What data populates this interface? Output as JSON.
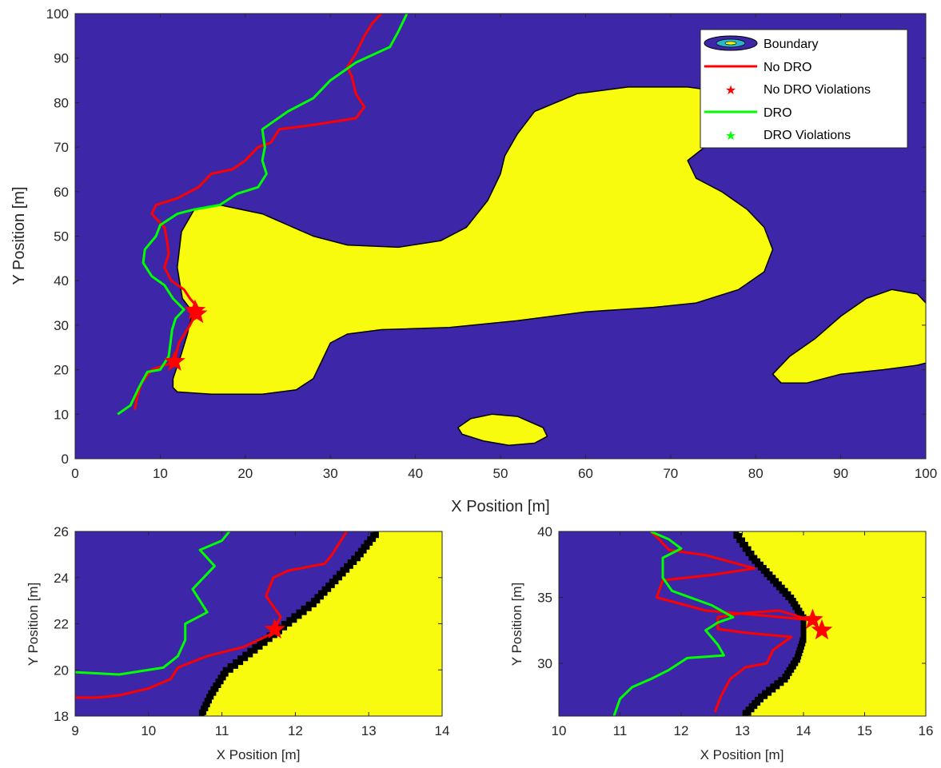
{
  "colors": {
    "safe_region": "#3E26A8",
    "unsafe_region": "#F9FB0E",
    "no_dro": "#FF0000",
    "dro": "#00FF00",
    "boundary_line": "#000000"
  },
  "chart_data": [
    {
      "type": "line",
      "panel": "main",
      "xlabel": "X Position [m]",
      "ylabel": "Y Position [m]",
      "xlim": [
        0,
        100
      ],
      "ylim": [
        0,
        100
      ],
      "xticks": [
        "0",
        "10",
        "20",
        "30",
        "40",
        "50",
        "60",
        "70",
        "80",
        "90",
        "100"
      ],
      "yticks": [
        "0",
        "10",
        "20",
        "30",
        "40",
        "50",
        "60",
        "70",
        "80",
        "90",
        "100"
      ],
      "background": "filled contour: yellow obstacle regions on blue free space, black boundary contour",
      "legend_position": "top-right",
      "legend": [
        "Boundary",
        "No DRO",
        "No DRO Violations",
        "DRO",
        "DRO Violations"
      ],
      "obstacles": [
        {
          "name": "large-obstacle",
          "outline": [
            [
              11.5,
              16
            ],
            [
              12,
              15
            ],
            [
              16,
              14.5
            ],
            [
              22,
              14.5
            ],
            [
              26,
              15.5
            ],
            [
              28,
              18
            ],
            [
              29,
              22
            ],
            [
              30,
              26
            ],
            [
              32,
              28
            ],
            [
              36,
              29
            ],
            [
              44,
              29.5
            ],
            [
              52,
              31
            ],
            [
              60,
              33
            ],
            [
              68,
              34
            ],
            [
              73,
              35
            ],
            [
              78,
              38
            ],
            [
              81,
              42
            ],
            [
              82,
              47
            ],
            [
              81,
              52
            ],
            [
              79,
              56
            ],
            [
              76,
              60
            ],
            [
              73,
              63
            ],
            [
              72,
              67
            ],
            [
              74,
              70
            ],
            [
              77,
              72
            ],
            [
              83,
              74
            ],
            [
              84,
              77
            ],
            [
              82,
              80
            ],
            [
              78,
              82
            ],
            [
              72,
              83.5
            ],
            [
              65,
              83.5
            ],
            [
              59,
              82
            ],
            [
              54,
              78
            ],
            [
              52,
              73
            ],
            [
              50.5,
              68
            ],
            [
              50,
              64
            ],
            [
              48.5,
              58
            ],
            [
              46,
              52
            ],
            [
              43,
              49
            ],
            [
              38,
              47.5
            ],
            [
              32,
              48
            ],
            [
              28,
              50
            ],
            [
              22,
              55
            ],
            [
              17,
              57
            ],
            [
              14,
              56
            ],
            [
              12.5,
              51
            ],
            [
              12,
              43
            ],
            [
              12.6,
              36
            ],
            [
              13.8,
              33
            ],
            [
              13.2,
              28
            ],
            [
              12.4,
              23
            ],
            [
              11.5,
              18
            ]
          ]
        },
        {
          "name": "right-obstacle",
          "outline": [
            [
              82,
              19
            ],
            [
              84,
              23
            ],
            [
              87,
              27
            ],
            [
              90,
              32
            ],
            [
              93,
              36
            ],
            [
              96,
              38
            ],
            [
              99,
              37
            ],
            [
              101,
              33
            ],
            [
              101,
              22
            ],
            [
              99,
              21
            ],
            [
              95,
              20
            ],
            [
              90,
              19
            ],
            [
              86,
              17
            ],
            [
              83,
              17
            ]
          ]
        },
        {
          "name": "small-obstacle",
          "outline": [
            [
              45,
              7
            ],
            [
              46.5,
              9
            ],
            [
              49,
              10
            ],
            [
              52,
              9.5
            ],
            [
              55,
              7
            ],
            [
              55.5,
              5
            ],
            [
              54,
              3.5
            ],
            [
              51,
              3
            ],
            [
              48,
              4
            ],
            [
              45.5,
              5.5
            ]
          ]
        }
      ],
      "series": [
        {
          "name": "No DRO",
          "color": "#FF0000",
          "points": [
            [
              7,
              11
            ],
            [
              7.3,
              14
            ],
            [
              7.8,
              17
            ],
            [
              9,
              20
            ],
            [
              11.3,
              21.5
            ],
            [
              11.8,
              23
            ],
            [
              12.2,
              26
            ],
            [
              13.5,
              30
            ],
            [
              14.3,
              33
            ],
            [
              14.4,
              34
            ],
            [
              13.5,
              36
            ],
            [
              12.8,
              38
            ],
            [
              11.3,
              40
            ],
            [
              10.5,
              43
            ],
            [
              11,
              46
            ],
            [
              10.8,
              49
            ],
            [
              10.5,
              52
            ],
            [
              9,
              55
            ],
            [
              9.5,
              57
            ],
            [
              12,
              58.5
            ],
            [
              14.5,
              61
            ],
            [
              16,
              64
            ],
            [
              18.5,
              65
            ],
            [
              20,
              67
            ],
            [
              21.5,
              70
            ],
            [
              23,
              71
            ],
            [
              24,
              74
            ],
            [
              28,
              75
            ],
            [
              33,
              76.5
            ],
            [
              34,
              79
            ],
            [
              33,
              82
            ],
            [
              32.5,
              86
            ],
            [
              32,
              88
            ],
            [
              33,
              91
            ],
            [
              34,
              95
            ],
            [
              35,
              98
            ],
            [
              36,
              100
            ]
          ]
        },
        {
          "name": "DRO",
          "color": "#00FF00",
          "points": [
            [
              5,
              10
            ],
            [
              6.5,
              12
            ],
            [
              7.5,
              16
            ],
            [
              8.5,
              19.5
            ],
            [
              10,
              20
            ],
            [
              11,
              23
            ],
            [
              11.2,
              26
            ],
            [
              11.4,
              29
            ],
            [
              11.8,
              31.5
            ],
            [
              12.8,
              33.5
            ],
            [
              11.5,
              36
            ],
            [
              10.5,
              39
            ],
            [
              9,
              41
            ],
            [
              8,
              44
            ],
            [
              8.2,
              47
            ],
            [
              9.5,
              50
            ],
            [
              10,
              52.5
            ],
            [
              12,
              55
            ],
            [
              14,
              56
            ],
            [
              17,
              57
            ],
            [
              19,
              59.5
            ],
            [
              21.5,
              61
            ],
            [
              22.5,
              64
            ],
            [
              22,
              67
            ],
            [
              22.3,
              70
            ],
            [
              22,
              74
            ],
            [
              25,
              78
            ],
            [
              28,
              81
            ],
            [
              30,
              85
            ],
            [
              33,
              89
            ],
            [
              37,
              92.5
            ],
            [
              38,
              96
            ],
            [
              39,
              100
            ]
          ]
        }
      ],
      "violations": {
        "no_dro": [
          [
            11.7,
            21.8
          ],
          [
            14.1,
            33.3
          ],
          [
            14.3,
            32.5
          ]
        ],
        "dro": []
      }
    },
    {
      "type": "line",
      "panel": "zoom-left",
      "xlabel": "X Position [m]",
      "ylabel": "Y Position [m]",
      "xlim": [
        9,
        14
      ],
      "ylim": [
        18,
        26
      ],
      "xticks": [
        "9",
        "10",
        "11",
        "12",
        "13",
        "14"
      ],
      "yticks": [
        "18",
        "20",
        "22",
        "24",
        "26"
      ],
      "boundary": [
        [
          10.7,
          18
        ],
        [
          10.85,
          19
        ],
        [
          11.05,
          20
        ],
        [
          11.45,
          21
        ],
        [
          11.85,
          22
        ],
        [
          12.25,
          23
        ],
        [
          12.55,
          24
        ],
        [
          12.85,
          25
        ],
        [
          13.1,
          26
        ]
      ],
      "series": [
        {
          "name": "No DRO",
          "color": "#FF0000",
          "points": [
            [
              9,
              18.8
            ],
            [
              9.3,
              18.8
            ],
            [
              9.6,
              18.9
            ],
            [
              10,
              19.2
            ],
            [
              10.3,
              19.6
            ],
            [
              10.4,
              20.1
            ],
            [
              10.8,
              20.6
            ],
            [
              11.3,
              21
            ],
            [
              11.7,
              21.6
            ],
            [
              11.8,
              22.3
            ],
            [
              11.6,
              23.2
            ],
            [
              11.7,
              24
            ],
            [
              11.9,
              24.3
            ],
            [
              12.4,
              24.6
            ],
            [
              12.5,
              25
            ],
            [
              12.6,
              25.5
            ],
            [
              12.7,
              26
            ]
          ]
        },
        {
          "name": "DRO",
          "color": "#00FF00",
          "points": [
            [
              9,
              19.9
            ],
            [
              9.6,
              19.8
            ],
            [
              10.2,
              20.1
            ],
            [
              10.4,
              20.6
            ],
            [
              10.5,
              21.3
            ],
            [
              10.5,
              22
            ],
            [
              10.8,
              22.5
            ],
            [
              10.6,
              23.5
            ],
            [
              10.9,
              24.5
            ],
            [
              10.7,
              25.2
            ],
            [
              11,
              25.6
            ],
            [
              11.1,
              26
            ]
          ]
        }
      ],
      "violations": {
        "no_dro": [
          [
            11.72,
            21.75
          ]
        ],
        "dro": []
      }
    },
    {
      "type": "line",
      "panel": "zoom-right",
      "xlabel": "X Position [m]",
      "ylabel": "Y Position [m]",
      "xlim": [
        10,
        16
      ],
      "ylim": [
        26,
        40
      ],
      "xticks": [
        "10",
        "11",
        "12",
        "13",
        "14",
        "15",
        "16"
      ],
      "yticks": [
        "30",
        "35",
        "40"
      ],
      "boundary": [
        [
          13,
          26
        ],
        [
          13.3,
          27.5
        ],
        [
          13.7,
          29
        ],
        [
          13.9,
          30.5
        ],
        [
          14,
          32
        ],
        [
          14,
          33.5
        ],
        [
          13.8,
          35
        ],
        [
          13.5,
          36.5
        ],
        [
          13.2,
          38
        ],
        [
          12.9,
          40
        ]
      ],
      "series": [
        {
          "name": "No DRO",
          "color": "#FF0000",
          "points": [
            [
              12.55,
              26.3
            ],
            [
              12.65,
              27.5
            ],
            [
              12.8,
              28.8
            ],
            [
              13.05,
              29.7
            ],
            [
              13.4,
              30
            ],
            [
              13.5,
              31
            ],
            [
              13.8,
              32
            ],
            [
              13.1,
              32.3
            ],
            [
              12.6,
              32.6
            ],
            [
              12.6,
              33.5
            ],
            [
              13,
              33.8
            ],
            [
              13.6,
              34
            ],
            [
              14.1,
              33.3
            ],
            [
              13.4,
              33.6
            ],
            [
              12.4,
              34
            ],
            [
              11.6,
              35
            ],
            [
              11.7,
              36.3
            ],
            [
              12.5,
              36.7
            ],
            [
              13.2,
              37.2
            ],
            [
              12.4,
              38.2
            ],
            [
              11.8,
              38.6
            ],
            [
              11.6,
              39.6
            ],
            [
              11.5,
              40
            ]
          ]
        },
        {
          "name": "DRO",
          "color": "#00FF00",
          "points": [
            [
              10.9,
              26
            ],
            [
              11,
              27.3
            ],
            [
              11.2,
              28.2
            ],
            [
              11.5,
              28.8
            ],
            [
              11.8,
              29.5
            ],
            [
              12.1,
              30.4
            ],
            [
              12.7,
              30.6
            ],
            [
              12.6,
              31.4
            ],
            [
              12.4,
              32.5
            ],
            [
              12.6,
              33.1
            ],
            [
              12.85,
              33.5
            ],
            [
              12.5,
              34.4
            ],
            [
              11.85,
              35.5
            ],
            [
              11.7,
              36.5
            ],
            [
              11.7,
              38
            ],
            [
              12,
              38.7
            ],
            [
              11.8,
              39.4
            ],
            [
              11.5,
              40
            ]
          ]
        }
      ],
      "violations": {
        "no_dro": [
          [
            14.15,
            33.3
          ],
          [
            14.3,
            32.5
          ]
        ],
        "dro": []
      }
    }
  ]
}
